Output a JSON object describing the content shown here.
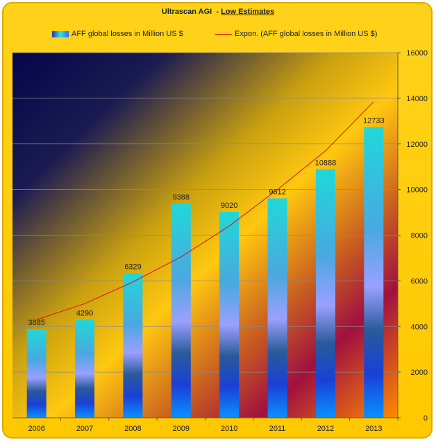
{
  "title": {
    "main": "Ultrascan AGI",
    "separator": "-",
    "sub": "Low Estimates"
  },
  "legend": {
    "bar_label": "AFF global losses in Million US $",
    "line_label": "Expon. (AFF global losses in Million US $)"
  },
  "colors": {
    "frame": "#ffc800",
    "trend": "#e01010",
    "bar_top": "#3ce0e0",
    "bar_bottom": "#0b7fff"
  },
  "chart_data": {
    "type": "bar",
    "categories": [
      "2006",
      "2007",
      "2008",
      "2009",
      "2010",
      "2011",
      "2012",
      "2013"
    ],
    "series": [
      {
        "name": "AFF global losses in Million US $",
        "values": [
          3885,
          4290,
          6329,
          9388,
          9020,
          9612,
          10888,
          12733
        ]
      }
    ],
    "trendline": {
      "name": "Expon. (AFF global losses in Million US $)",
      "type": "exponential",
      "values": [
        4300,
        5000,
        5950,
        7050,
        8400,
        10000,
        11700,
        13850
      ]
    },
    "data_labels": [
      "3885",
      "4290",
      "6329",
      "9388",
      "9020",
      "9612",
      "10888",
      "12733"
    ],
    "y_ticks": [
      "0",
      "2000",
      "4000",
      "6000",
      "8000",
      "10000",
      "12000",
      "14000",
      "16000"
    ],
    "ylim": [
      0,
      16000
    ],
    "y_axis_position": "right",
    "grid": true,
    "legend_position": "top"
  }
}
